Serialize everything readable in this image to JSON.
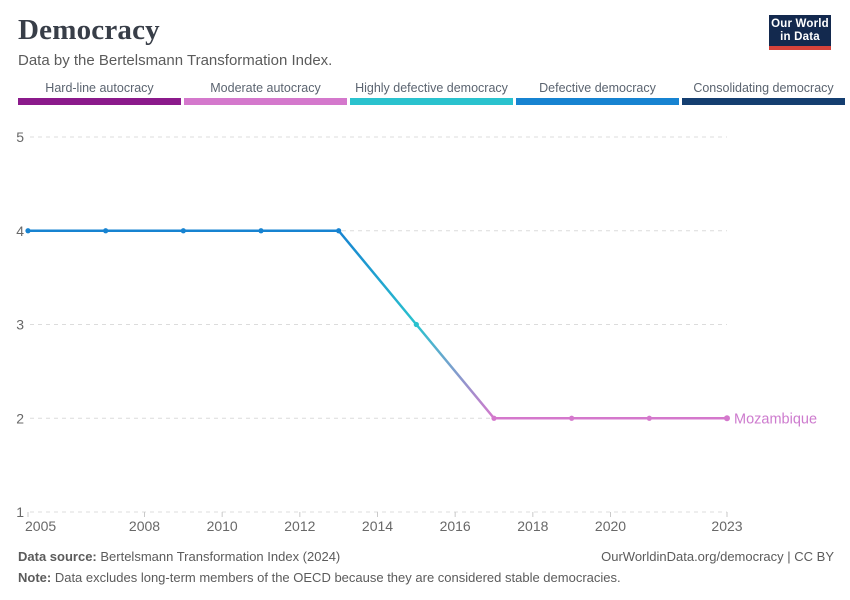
{
  "header": {
    "title": "Democracy",
    "subtitle": "Data by the Bertelsmann Transformation Index.",
    "logo": {
      "line1": "Our World",
      "line2": "in Data",
      "bg_color": "#13294e",
      "accent_color": "#d6433b"
    }
  },
  "legend": {
    "items": [
      {
        "label": "Hard-line autocracy",
        "color": "#8b1a8b"
      },
      {
        "label": "Moderate autocracy",
        "color": "#d478cc"
      },
      {
        "label": "Highly defective democracy",
        "color": "#2ac2ce"
      },
      {
        "label": "Defective democracy",
        "color": "#1783d1"
      },
      {
        "label": "Consolidating democracy",
        "color": "#143e70"
      }
    ]
  },
  "chart_data": {
    "type": "line",
    "title": "Democracy",
    "subtitle": "Data by the Bertelsmann Transformation Index.",
    "x": [
      2005,
      2007,
      2009,
      2011,
      2013,
      2015,
      2017,
      2019,
      2021,
      2023
    ],
    "series": [
      {
        "name": "Mozambique",
        "values": [
          4,
          4,
          4,
          4,
          4,
          3,
          2,
          2,
          2,
          2
        ],
        "label_color": "#cd7bce"
      }
    ],
    "ylim": [
      1,
      5
    ],
    "yticks": [
      1,
      2,
      3,
      4,
      5
    ],
    "xticks": [
      2005,
      2008,
      2010,
      2012,
      2014,
      2016,
      2018,
      2020,
      2023
    ],
    "grid": "dashed-horizontal",
    "legend_position": "top-bands",
    "value_colors": {
      "1": "#8b1a8b",
      "2": "#d478cc",
      "3": "#2ac2ce",
      "4": "#1783d1",
      "5": "#143e70"
    },
    "grid_color": "#dcdcdc",
    "tick_text_color": "#686868"
  },
  "footer": {
    "source_label": "Data source:",
    "source_text": " Bertelsmann Transformation Index (2024)",
    "link_text": "OurWorldinData.org/democracy | CC BY",
    "note_label": "Note:",
    "note_text": " Data excludes long-term members of the OECD because they are considered stable democracies."
  }
}
